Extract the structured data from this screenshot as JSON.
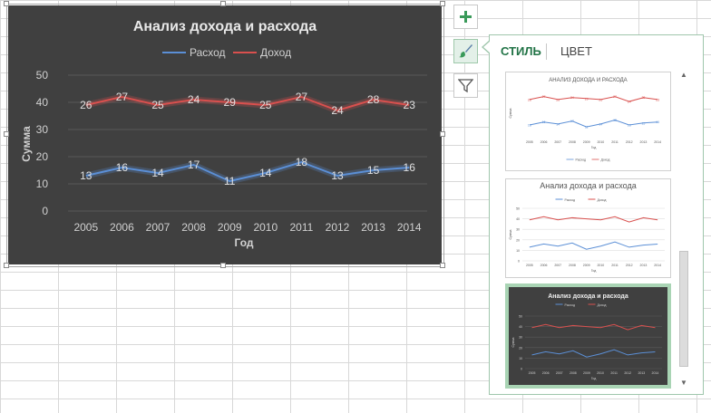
{
  "chart": {
    "title": "Анализ дохода и расхода",
    "xlabel": "Год",
    "ylabel": "Сумма"
  },
  "chart_data": {
    "type": "line",
    "title": "Анализ дохода и расхода",
    "xlabel": "Год",
    "ylabel": "Сумма",
    "categories": [
      "2005",
      "2006",
      "2007",
      "2008",
      "2009",
      "2010",
      "2011",
      "2012",
      "2013",
      "2014"
    ],
    "ylim": [
      0,
      50
    ],
    "yticks": [
      0,
      10,
      20,
      30,
      40,
      50
    ],
    "grid": true,
    "legend_position": "top",
    "series": [
      {
        "name": "Расход",
        "color": "#5b8fd6",
        "values": [
          13,
          16,
          14,
          17,
          11,
          14,
          18,
          13,
          15,
          16
        ],
        "labels": [
          "13",
          "16",
          "14",
          "17",
          "11",
          "14",
          "18",
          "13",
          "15",
          "16"
        ]
      },
      {
        "name": "Доход",
        "color": "#d9504e",
        "values": [
          39,
          42,
          39,
          41,
          40,
          39,
          42,
          37,
          41,
          39
        ],
        "labels": [
          "26",
          "27",
          "25",
          "24",
          "29",
          "25",
          "27",
          "24",
          "28",
          "23"
        ]
      }
    ]
  },
  "sidebar_buttons": {
    "add_icon": "plus-icon",
    "style_icon": "brush-icon",
    "filter_icon": "filter-icon"
  },
  "panel": {
    "tabs": [
      {
        "label": "СТИЛЬ",
        "active": true
      },
      {
        "label": "ЦВЕТ",
        "active": false
      }
    ],
    "thumbnails": [
      {
        "title": "АНАЛИЗ ДОХОДА И РАСХОДА",
        "xlabel": "Год",
        "ylabel": "Сумма",
        "legend": [
          "Расход",
          "Доход"
        ],
        "dark": false,
        "yticks": [],
        "xticks": [
          "2005",
          "2006",
          "2007",
          "2008",
          "2009",
          "2010",
          "2011",
          "2012",
          "2013",
          "2014"
        ],
        "income_labels": [
          "26",
          "27",
          "25",
          "24",
          "29",
          "25",
          "27",
          "24",
          "28",
          "23"
        ],
        "expense_labels": [
          "13",
          "16",
          "14",
          "17",
          "11",
          "14",
          "18",
          "13",
          "15",
          "16"
        ]
      },
      {
        "title": "Анализ дохода и расхода",
        "xlabel": "Год",
        "ylabel": "Сумма",
        "legend": [
          "Расход",
          "Доход"
        ],
        "dark": false,
        "yticks": [
          "50",
          "40",
          "30",
          "20",
          "10",
          "0"
        ],
        "xticks": [
          "2005",
          "2006",
          "2007",
          "2008",
          "2009",
          "2010",
          "2011",
          "2012",
          "2013",
          "2014"
        ]
      },
      {
        "title": "Анализ дохода и расхода",
        "xlabel": "Год",
        "ylabel": "Сумма",
        "legend": [
          "Расход",
          "Доход"
        ],
        "dark": true,
        "yticks": [
          "50",
          "40",
          "30",
          "20",
          "10",
          "0"
        ],
        "xticks": [
          "2005",
          "2006",
          "2007",
          "2008",
          "2009",
          "2010",
          "2011",
          "2012",
          "2013",
          "2014"
        ]
      }
    ]
  }
}
